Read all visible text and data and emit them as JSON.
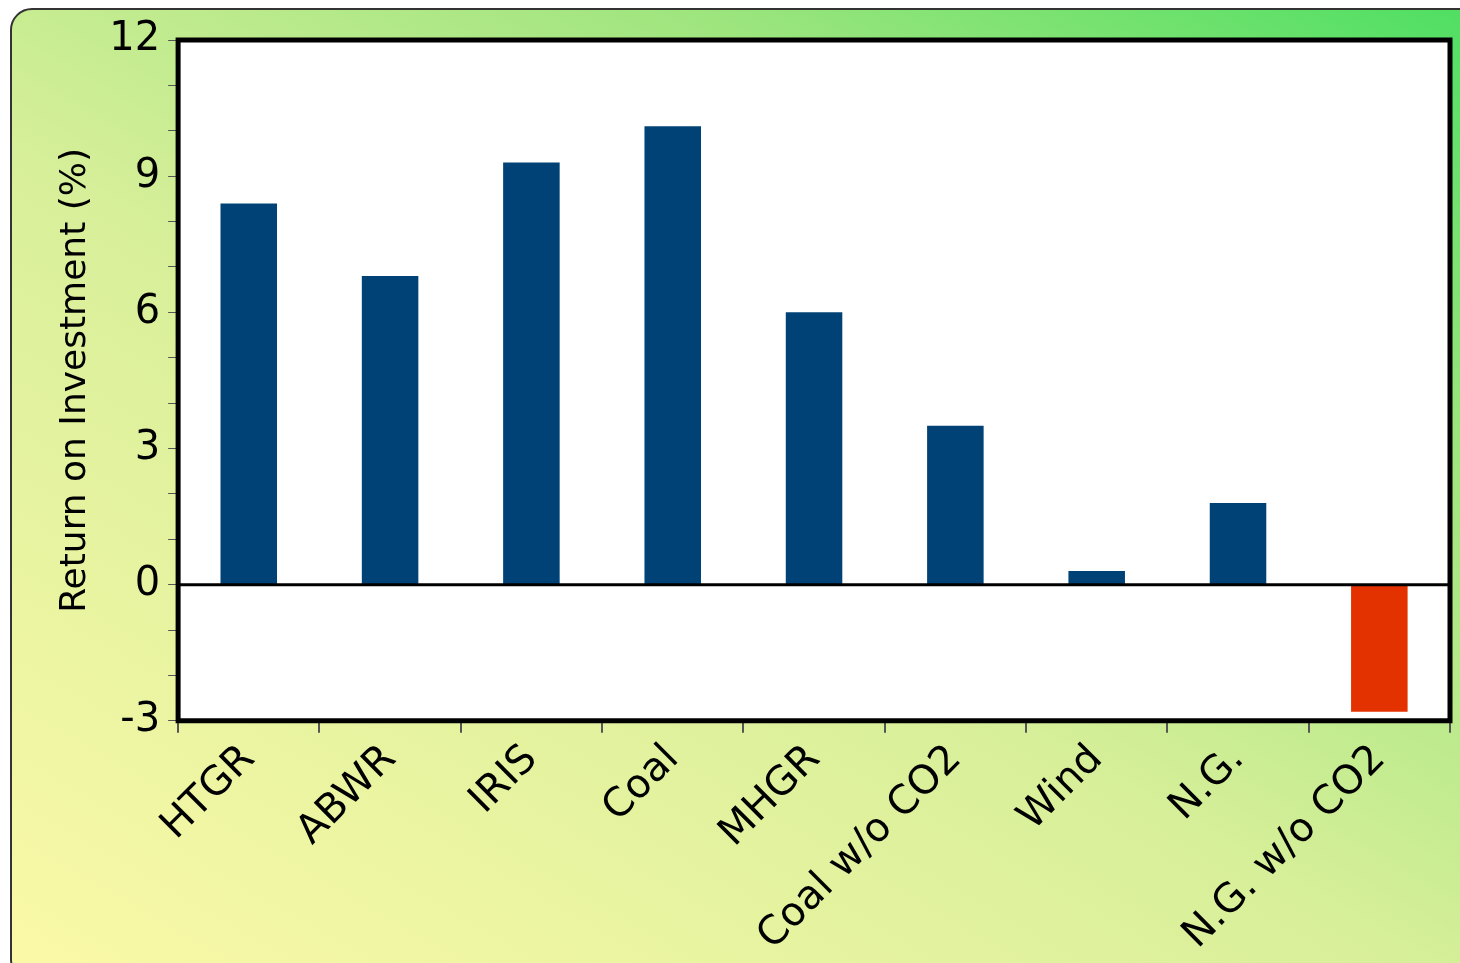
{
  "chart_data": {
    "type": "bar",
    "ylabel": "Return on Investment (%)",
    "categories": [
      "HTGR",
      "ABWR",
      "IRIS",
      "Coal",
      "MHGR",
      "Coal w/o CO2",
      "Wind",
      "N.G.",
      "N.G. w/o CO2"
    ],
    "values": [
      8.4,
      6.8,
      9.3,
      10.1,
      6.0,
      3.5,
      0.3,
      1.8,
      -2.8
    ],
    "colors": [
      "#004275",
      "#004275",
      "#004275",
      "#004275",
      "#004275",
      "#004275",
      "#004275",
      "#004275",
      "#e33200"
    ],
    "ylim": [
      -3,
      12
    ],
    "yticks": [
      -3,
      {
        "value": -2,
        "label": null
      },
      {
        "value": -1,
        "label": null
      },
      0,
      {
        "value": 1,
        "label": null
      },
      {
        "value": 2,
        "label": null
      },
      3,
      {
        "value": 4,
        "label": null
      },
      {
        "value": 5,
        "label": null
      },
      6,
      {
        "value": 7,
        "label": null
      },
      {
        "value": 8,
        "label": null
      },
      9,
      {
        "value": 10,
        "label": null
      },
      {
        "value": 11,
        "label": null
      },
      12
    ],
    "ref_lines": [
      {
        "axis": "y",
        "value": 0,
        "color": "#000000"
      }
    ],
    "grid": false,
    "legend": false
  }
}
